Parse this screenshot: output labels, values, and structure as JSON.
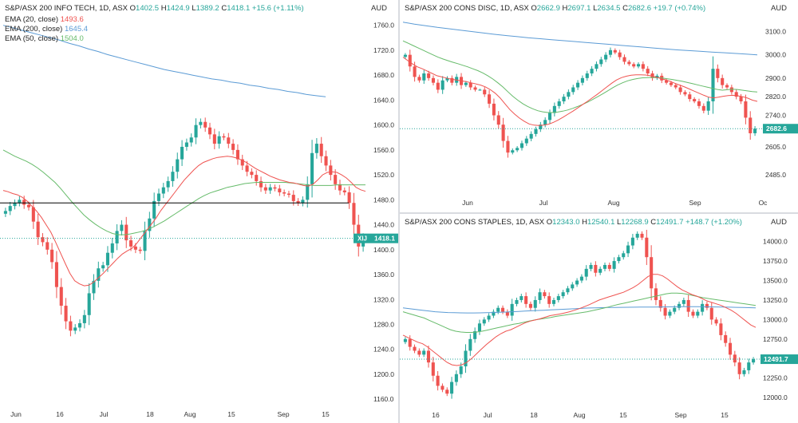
{
  "colors": {
    "up": "#26a69a",
    "down": "#ef5350",
    "ema20": "#ef5350",
    "ema200": "#5b9bd5",
    "ema50": "#66bb6a",
    "last_up": "#26a69a",
    "hline": "#000000"
  },
  "charts": [
    {
      "id": "infotech",
      "title": {
        "name": "S&P/ASX 200 INFO TECH, 1D, ASX",
        "o_lbl": "O",
        "o": "1402.5",
        "h_lbl": "H",
        "h": "1424.9",
        "l_lbl": "L",
        "l": "1389.2",
        "c_lbl": "C",
        "c": "1418.1",
        "chg": "+15.6 (+1.11%)"
      },
      "currency": "AUD",
      "legend": [
        {
          "label": "EMA (20, close)",
          "value": "1493.6"
        },
        {
          "label": "EMA (200, close)",
          "value": "1645.4"
        },
        {
          "label": "EMA (50, close)",
          "value": "1504.0"
        }
      ],
      "ticker": "XIJ",
      "last_price": "1418.1",
      "y_ticks": [
        "1760.0",
        "1720.0",
        "1680.0",
        "1640.0",
        "1600.0",
        "1560.0",
        "1520.0",
        "1480.0",
        "1440.0",
        "1400.0",
        "1360.0",
        "1320.0",
        "1280.0",
        "1240.0",
        "1200.0",
        "1160.0"
      ],
      "x_labels": [
        "Jun",
        "16",
        "Jul",
        "18",
        "Aug",
        "15",
        "Sep",
        "15"
      ]
    },
    {
      "id": "consdisc",
      "title": {
        "name": "S&P/ASX 200 CONS DISC, 1D, ASX",
        "o_lbl": "O",
        "o": "2662.9",
        "h_lbl": "H",
        "h": "2697.1",
        "l_lbl": "L",
        "l": "2634.5",
        "c_lbl": "C",
        "c": "2682.6",
        "chg": "+19.7 (+0.74%)"
      },
      "currency": "AUD",
      "last_price": "2682.6",
      "y_ticks": [
        "3100.0",
        "3000.0",
        "2900.0",
        "2820.0",
        "2740.0",
        "2605.0",
        "2485.0"
      ],
      "x_labels": [
        "Jun",
        "Jul",
        "Aug",
        "Sep",
        "Oc"
      ]
    },
    {
      "id": "consstaples",
      "title": {
        "name": "S&P/ASX 200 CONS STAPLES, 1D, ASX",
        "o_lbl": "O",
        "o": "12343.0",
        "h_lbl": "H",
        "h": "12540.1",
        "l_lbl": "L",
        "l": "12268.9",
        "c_lbl": "C",
        "c": "12491.7",
        "chg": "+148.7 (+1.20%)"
      },
      "currency": "AUD",
      "last_price": "12491.7",
      "y_ticks": [
        "14000.0",
        "13750.0",
        "13500.0",
        "13250.0",
        "13000.0",
        "12750.0",
        "12500.0",
        "12250.0",
        "12000.0"
      ],
      "x_labels": [
        "16",
        "Jul",
        "18",
        "Aug",
        "15",
        "Sep",
        "15"
      ]
    }
  ],
  "chart_data": [
    {
      "type": "candlestick",
      "title": "S&P/ASX 200 INFO TECH, 1D, ASX",
      "ylim": [
        1150,
        1775
      ],
      "ema20_last": 1493.6,
      "ema200_last": 1645.4,
      "ema50_last": 1504.0,
      "hline": 1475,
      "close": [
        1462,
        1470,
        1475,
        1480,
        1472,
        1468,
        1445,
        1420,
        1412,
        1400,
        1380,
        1340,
        1310,
        1285,
        1270,
        1275,
        1282,
        1295,
        1330,
        1350,
        1370,
        1375,
        1395,
        1410,
        1430,
        1440,
        1415,
        1405,
        1400,
        1398,
        1430,
        1450,
        1478,
        1490,
        1500,
        1510,
        1525,
        1545,
        1565,
        1572,
        1580,
        1600,
        1605,
        1596,
        1585,
        1570,
        1582,
        1580,
        1570,
        1560,
        1545,
        1535,
        1525,
        1520,
        1510,
        1500,
        1495,
        1500,
        1498,
        1492,
        1490,
        1488,
        1478,
        1475,
        1480,
        1505,
        1555,
        1570,
        1550,
        1535,
        1520,
        1505,
        1495,
        1492,
        1475,
        1440,
        1405,
        1418
      ],
      "ema20": [
        1495,
        1493,
        1490,
        1488,
        1484,
        1478,
        1470,
        1462,
        1452,
        1440,
        1428,
        1412,
        1395,
        1378,
        1362,
        1350,
        1345,
        1342,
        1343,
        1348,
        1355,
        1362,
        1370,
        1378,
        1386,
        1393,
        1398,
        1402,
        1410,
        1420,
        1430,
        1440,
        1450,
        1462,
        1472,
        1482,
        1492,
        1502,
        1512,
        1520,
        1528,
        1535,
        1540,
        1543,
        1546,
        1548,
        1549,
        1550,
        1549,
        1547,
        1544,
        1540,
        1535,
        1530,
        1526,
        1522,
        1518,
        1515,
        1512,
        1510,
        1508,
        1507,
        1505,
        1503,
        1502,
        1505,
        1512,
        1520,
        1524,
        1525,
        1524,
        1520,
        1515,
        1508,
        1500,
        1496,
        1493.6
      ],
      "ema50": [
        1560,
        1555,
        1550,
        1546,
        1542,
        1537,
        1531,
        1524,
        1516,
        1508,
        1498,
        1487,
        1476,
        1466,
        1456,
        1448,
        1441,
        1435,
        1430,
        1426,
        1424,
        1424,
        1425,
        1427,
        1429,
        1432,
        1436,
        1441,
        1446,
        1452,
        1458,
        1464,
        1470,
        1476,
        1482,
        1487,
        1491,
        1494,
        1497,
        1500,
        1502,
        1504,
        1506,
        1507,
        1508,
        1508,
        1508,
        1508,
        1508,
        1508,
        1507,
        1506,
        1505,
        1504,
        1503,
        1503,
        1503,
        1503,
        1504,
        1504,
        1504,
        1504,
        1504,
        1504.0
      ],
      "ema200": [
        1760,
        1756,
        1752,
        1748,
        1744,
        1740,
        1736,
        1731,
        1727,
        1722,
        1718,
        1713,
        1709,
        1705,
        1701,
        1697,
        1693,
        1689,
        1686,
        1683,
        1680,
        1677,
        1674,
        1672,
        1669,
        1667,
        1664,
        1662,
        1659,
        1657,
        1654,
        1652,
        1649,
        1647,
        1645.4
      ]
    },
    {
      "type": "candlestick",
      "title": "S&P/ASX 200 CONS DISC, 1D, ASX",
      "ylim": [
        2440,
        3160
      ],
      "ema20_last": 2800,
      "ema200_last": 3000,
      "ema50_last": 2840,
      "close": [
        3000,
        2950,
        2905,
        2890,
        2920,
        2900,
        2880,
        2850,
        2890,
        2900,
        2880,
        2905,
        2870,
        2880,
        2860,
        2850,
        2850,
        2830,
        2790,
        2740,
        2700,
        2630,
        2580,
        2590,
        2600,
        2620,
        2640,
        2660,
        2680,
        2700,
        2720,
        2750,
        2780,
        2800,
        2820,
        2840,
        2860,
        2880,
        2900,
        2920,
        2940,
        2960,
        2980,
        3000,
        3020,
        3010,
        2990,
        2970,
        2960,
        2950,
        2960,
        2940,
        2920,
        2900,
        2910,
        2890,
        2880,
        2870,
        2860,
        2840,
        2830,
        2810,
        2800,
        2780,
        2760,
        2800,
        2940,
        2900,
        2870,
        2860,
        2840,
        2820,
        2800,
        2730,
        2663,
        2682.6
      ],
      "ema20": [
        2990,
        2975,
        2960,
        2948,
        2940,
        2930,
        2920,
        2910,
        2905,
        2900,
        2895,
        2892,
        2888,
        2885,
        2880,
        2875,
        2870,
        2862,
        2850,
        2835,
        2815,
        2790,
        2765,
        2745,
        2728,
        2714,
        2703,
        2698,
        2696,
        2698,
        2702,
        2710,
        2720,
        2732,
        2745,
        2758,
        2772,
        2786,
        2800,
        2815,
        2830,
        2846,
        2862,
        2878,
        2892,
        2902,
        2908,
        2912,
        2914,
        2914,
        2913,
        2910,
        2905,
        2899,
        2893,
        2886,
        2878,
        2870,
        2862,
        2853,
        2844,
        2835,
        2826,
        2818,
        2815,
        2818,
        2822,
        2825,
        2826,
        2824,
        2820,
        2814,
        2805,
        2800
      ],
      "ema50": [
        3060,
        3050,
        3040,
        3030,
        3020,
        3010,
        3000,
        2990,
        2982,
        2975,
        2968,
        2962,
        2955,
        2948,
        2940,
        2932,
        2922,
        2910,
        2896,
        2880,
        2862,
        2842,
        2822,
        2805,
        2790,
        2778,
        2768,
        2760,
        2755,
        2752,
        2752,
        2754,
        2758,
        2763,
        2770,
        2778,
        2787,
        2797,
        2808,
        2820,
        2832,
        2845,
        2858,
        2870,
        2880,
        2888,
        2894,
        2898,
        2901,
        2902,
        2903,
        2902,
        2900,
        2897,
        2894,
        2890,
        2886,
        2881,
        2876,
        2871,
        2866,
        2861,
        2856,
        2851,
        2848,
        2850,
        2852,
        2851,
        2848,
        2845,
        2842,
        2840
      ],
      "ema200": [
        3140,
        3132,
        3125,
        3118,
        3112,
        3106,
        3100,
        3094,
        3088,
        3083,
        3078,
        3073,
        3069,
        3065,
        3061,
        3057,
        3053,
        3049,
        3045,
        3041,
        3037,
        3033,
        3029,
        3025,
        3021,
        3018,
        3015,
        3012,
        3009,
        3006,
        3003,
        3000
      ]
    },
    {
      "type": "candlestick",
      "title": "S&P/ASX 200 CONS STAPLES, 1D, ASX",
      "ylim": [
        11950,
        14150
      ],
      "ema20_last": 12900,
      "ema200_last": 13150,
      "ema50_last": 13180,
      "close": [
        12750,
        12650,
        12600,
        12550,
        12600,
        12450,
        12280,
        12150,
        12100,
        12050,
        12200,
        12300,
        12400,
        12600,
        12750,
        12850,
        12950,
        13000,
        13050,
        13100,
        13150,
        13100,
        13050,
        13200,
        13250,
        13300,
        13200,
        13150,
        13250,
        13350,
        13300,
        13200,
        13250,
        13300,
        13350,
        13400,
        13450,
        13500,
        13550,
        13650,
        13700,
        13600,
        13650,
        13700,
        13650,
        13750,
        13800,
        13850,
        13950,
        14050,
        14100,
        14050,
        13800,
        13400,
        13250,
        13150,
        13050,
        13100,
        13150,
        13200,
        13250,
        13100,
        13050,
        13100,
        13200,
        13150,
        13000,
        12950,
        12800,
        12700,
        12550,
        12450,
        12300,
        12350,
        12450,
        12491.7
      ],
      "ema20": [
        12800,
        12770,
        12740,
        12710,
        12690,
        12650,
        12600,
        12550,
        12500,
        12450,
        12420,
        12410,
        12420,
        12450,
        12500,
        12560,
        12620,
        12680,
        12730,
        12780,
        12820,
        12850,
        12870,
        12900,
        12930,
        12960,
        12980,
        12995,
        13010,
        13030,
        13050,
        13060,
        13070,
        13085,
        13100,
        13120,
        13140,
        13165,
        13190,
        13220,
        13250,
        13270,
        13290,
        13310,
        13330,
        13350,
        13380,
        13410,
        13450,
        13500,
        13550,
        13580,
        13580,
        13560,
        13520,
        13470,
        13420,
        13380,
        13350,
        13320,
        13300,
        13270,
        13240,
        13220,
        13200,
        13180,
        13150,
        13120,
        13080,
        13030,
        12980,
        12930,
        12900
      ],
      "ema50": [
        13100,
        13080,
        13060,
        13040,
        13020,
        12990,
        12960,
        12930,
        12900,
        12870,
        12850,
        12840,
        12835,
        12835,
        12840,
        12850,
        12865,
        12880,
        12895,
        12910,
        12925,
        12940,
        12950,
        12965,
        12980,
        12995,
        13005,
        13015,
        13025,
        13040,
        13050,
        13060,
        13070,
        13080,
        13090,
        13100,
        13115,
        13130,
        13145,
        13160,
        13180,
        13195,
        13210,
        13225,
        13240,
        13255,
        13270,
        13285,
        13300,
        13315,
        13330,
        13340,
        13340,
        13335,
        13325,
        13310,
        13295,
        13280,
        13270,
        13260,
        13250,
        13240,
        13230,
        13220,
        13210,
        13200,
        13190,
        13180
      ],
      "ema200": [
        13150,
        13140,
        13130,
        13120,
        13110,
        13100,
        13095,
        13090,
        13088,
        13086,
        13085,
        13085,
        13086,
        13088,
        13090,
        13093,
        13096,
        13100,
        13104,
        13108,
        13112,
        13116,
        13120,
        13124,
        13128,
        13132,
        13136,
        13140,
        13144,
        13148,
        13150,
        13152,
        13154,
        13155,
        13156,
        13157,
        13158,
        13159,
        13160,
        13161,
        13162,
        13163,
        13164,
        13165,
        13165,
        13165,
        13165,
        13164,
        13163,
        13162,
        13160,
        13158,
        13156,
        13154,
        13152,
        13150
      ]
    }
  ]
}
